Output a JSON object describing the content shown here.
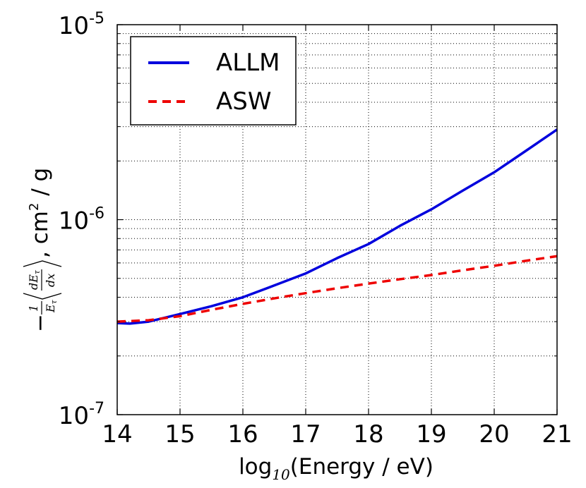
{
  "chart_data": {
    "type": "line",
    "title": "",
    "xlabel": {
      "prefix": "log",
      "subscript": "10",
      "suffix": "(Energy / eV)"
    },
    "ylabel": {
      "prefix_minus": "−",
      "frac1_num": "1",
      "frac1_den": "E",
      "frac1_den_sub": "τ",
      "frac2_num": "dE",
      "frac2_num_sub": "τ",
      "frac2_den": "dx",
      "units": ", cm",
      "units_sup": "2",
      "units_tail": " / g"
    },
    "xlim": [
      14,
      21
    ],
    "ylim": [
      1e-07,
      1e-05
    ],
    "yscale": "log",
    "grid": true,
    "x_ticks": [
      "14",
      "15",
      "16",
      "17",
      "18",
      "19",
      "20",
      "21"
    ],
    "y_ticks": [
      {
        "value": 1e-07,
        "base": "10",
        "exp": "-7"
      },
      {
        "value": 1e-06,
        "base": "10",
        "exp": "-6"
      },
      {
        "value": 1e-05,
        "base": "10",
        "exp": "-5"
      }
    ],
    "legend_position": "top-left",
    "series": [
      {
        "name": "ALLM",
        "color": "#0000dd",
        "style": "solid",
        "x": [
          14.0,
          14.2,
          14.5,
          15.0,
          15.5,
          16.0,
          16.5,
          17.0,
          17.5,
          18.0,
          18.5,
          19.0,
          19.5,
          20.0,
          20.5,
          21.0
        ],
        "y": [
          2.95e-07,
          2.93e-07,
          3e-07,
          3.28e-07,
          3.6e-07,
          4e-07,
          4.6e-07,
          5.3e-07,
          6.35e-07,
          7.5e-07,
          9.3e-07,
          1.13e-06,
          1.41e-06,
          1.75e-06,
          2.25e-06,
          2.9e-06
        ]
      },
      {
        "name": "ASW",
        "color": "#ee0000",
        "style": "dashed",
        "x": [
          14.0,
          14.5,
          15.0,
          15.5,
          16.0,
          16.5,
          17.0,
          17.5,
          18.0,
          18.5,
          19.0,
          19.5,
          20.0,
          20.5,
          21.0
        ],
        "y": [
          3e-07,
          3.05e-07,
          3.2e-07,
          3.45e-07,
          3.7e-07,
          3.95e-07,
          4.2e-07,
          4.45e-07,
          4.7e-07,
          4.95e-07,
          5.2e-07,
          5.5e-07,
          5.8e-07,
          6.15e-07,
          6.5e-07
        ]
      }
    ]
  }
}
